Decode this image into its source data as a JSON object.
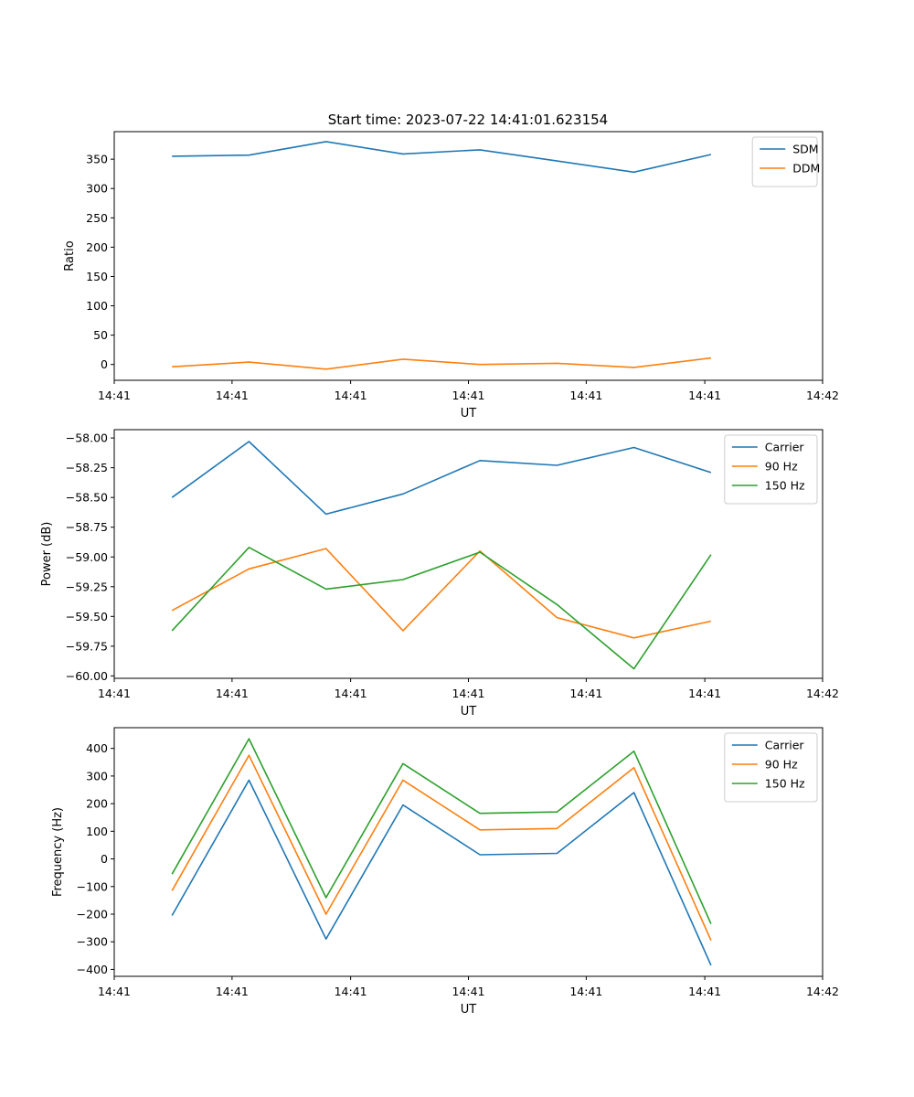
{
  "figure": {
    "title": "Start time: 2023-07-22 14:41:01.623154"
  },
  "colors": {
    "blue": "#1f77b4",
    "orange": "#ff7f0e",
    "green": "#2ca02c"
  },
  "chart_data": [
    {
      "type": "line",
      "xlabel": "UT",
      "ylabel": "Ratio",
      "x": [
        1,
        2,
        3,
        4,
        5,
        6,
        7,
        8
      ],
      "xlim": [
        0.25,
        9.45
      ],
      "xticks": [
        0.25,
        1.78,
        3.32,
        4.85,
        6.38,
        7.92,
        9.45
      ],
      "xtick_labels": [
        "14:41",
        "14:41",
        "14:41",
        "14:41",
        "14:41",
        "14:41",
        "14:42"
      ],
      "ylim": [
        -27,
        397
      ],
      "yticks": [
        0,
        50,
        100,
        150,
        200,
        250,
        300,
        350
      ],
      "ytick_labels": [
        "0",
        "50",
        "100",
        "150",
        "200",
        "250",
        "300",
        "350"
      ],
      "legend_position": "top-right",
      "series": [
        {
          "name": "SDM",
          "color": "blue",
          "values": [
            355,
            357,
            380,
            359,
            366,
            347,
            328,
            358
          ]
        },
        {
          "name": "DDM",
          "color": "orange",
          "values": [
            -4,
            4,
            -8,
            9,
            0,
            2,
            -5,
            11
          ]
        }
      ]
    },
    {
      "type": "line",
      "xlabel": "UT",
      "ylabel": "Power (dB)",
      "x": [
        1,
        2,
        3,
        4,
        5,
        6,
        7,
        8
      ],
      "xlim": [
        0.25,
        9.45
      ],
      "xticks": [
        0.25,
        1.78,
        3.32,
        4.85,
        6.38,
        7.92,
        9.45
      ],
      "xtick_labels": [
        "14:41",
        "14:41",
        "14:41",
        "14:41",
        "14:41",
        "14:41",
        "14:42"
      ],
      "ylim": [
        -60.02,
        -57.93
      ],
      "yticks": [
        -60.0,
        -59.75,
        -59.5,
        -59.25,
        -59.0,
        -58.75,
        -58.5,
        -58.25,
        -58.0
      ],
      "ytick_labels": [
        "−60.00",
        "−59.75",
        "−59.50",
        "−59.25",
        "−59.00",
        "−58.75",
        "−58.50",
        "−58.25",
        "−58.00"
      ],
      "legend_position": "top-right",
      "series": [
        {
          "name": "Carrier",
          "color": "blue",
          "values": [
            -58.5,
            -58.03,
            -58.64,
            -58.47,
            -58.19,
            -58.23,
            -58.08,
            -58.29
          ]
        },
        {
          "name": "90 Hz",
          "color": "orange",
          "values": [
            -59.45,
            -59.1,
            -58.93,
            -59.62,
            -58.95,
            -59.51,
            -59.68,
            -59.54
          ]
        },
        {
          "name": "150 Hz",
          "color": "green",
          "values": [
            -59.62,
            -58.92,
            -59.27,
            -59.19,
            -58.96,
            -59.4,
            -59.94,
            -58.98
          ]
        }
      ]
    },
    {
      "type": "line",
      "xlabel": "UT",
      "ylabel": "Frequency (Hz)",
      "x": [
        1,
        2,
        3,
        4,
        5,
        6,
        7,
        8
      ],
      "xlim": [
        0.25,
        9.45
      ],
      "xticks": [
        0.25,
        1.78,
        3.32,
        4.85,
        6.38,
        7.92,
        9.45
      ],
      "xtick_labels": [
        "14:41",
        "14:41",
        "14:41",
        "14:41",
        "14:41",
        "14:41",
        "14:42"
      ],
      "ylim": [
        -425,
        475
      ],
      "yticks": [
        -400,
        -300,
        -200,
        -100,
        0,
        100,
        200,
        300,
        400
      ],
      "ytick_labels": [
        "−400",
        "−300",
        "−200",
        "−100",
        "0",
        "100",
        "200",
        "300",
        "400"
      ],
      "legend_position": "top-right",
      "series": [
        {
          "name": "Carrier",
          "color": "blue",
          "values": [
            -205,
            285,
            -290,
            195,
            15,
            20,
            240,
            -385
          ]
        },
        {
          "name": "90 Hz",
          "color": "orange",
          "values": [
            -115,
            375,
            -200,
            285,
            105,
            110,
            330,
            -295
          ]
        },
        {
          "name": "150 Hz",
          "color": "green",
          "values": [
            -55,
            435,
            -140,
            345,
            165,
            170,
            390,
            -235
          ]
        }
      ]
    }
  ]
}
